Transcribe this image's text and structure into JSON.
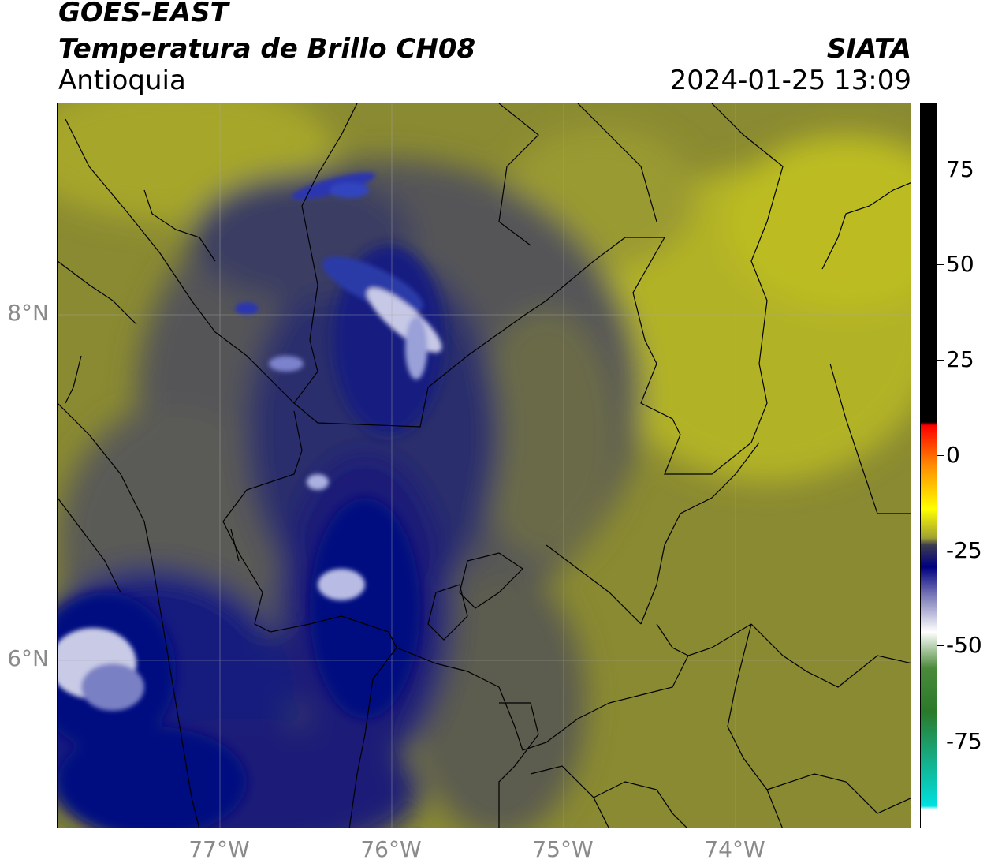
{
  "header": {
    "satellite": "GOES-EAST",
    "product": "Temperatura de Brillo CH08",
    "region": "Antioquia",
    "org": "SIATA",
    "datetime": "2024-01-25 13:09"
  },
  "map": {
    "lat_ticks": [
      "8°N",
      "6°N"
    ],
    "lon_ticks": [
      "77°W",
      "76°W",
      "75°W",
      "74°W"
    ],
    "colors": {
      "olive_light": "#b9b922",
      "olive": "#8a8a32",
      "olive_dark": "#6f6f44",
      "gray_dark": "#4c4c56",
      "navy": "#1c1f78",
      "navy_deep": "#000a80",
      "cold_white": "#d8d8ec",
      "border": "#000000"
    }
  },
  "colorbar": {
    "labels": [
      "75",
      "50",
      "25",
      "0",
      "-25",
      "-50",
      "-75"
    ],
    "stops": [
      {
        "color": "#000000"
      },
      {
        "color": "#000000"
      },
      {
        "color": "#ff0000"
      },
      {
        "color": "#ff8c00"
      },
      {
        "color": "#ffff00"
      },
      {
        "color": "#a0a032"
      },
      {
        "color": "#3c3c50"
      },
      {
        "color": "#000080"
      },
      {
        "color": "#7a7ab8"
      },
      {
        "color": "#ffffff"
      },
      {
        "color": "#4a8a3a"
      },
      {
        "color": "#2a7a2a"
      },
      {
        "color": "#00e0e0"
      },
      {
        "color": "#ffffff"
      }
    ]
  }
}
